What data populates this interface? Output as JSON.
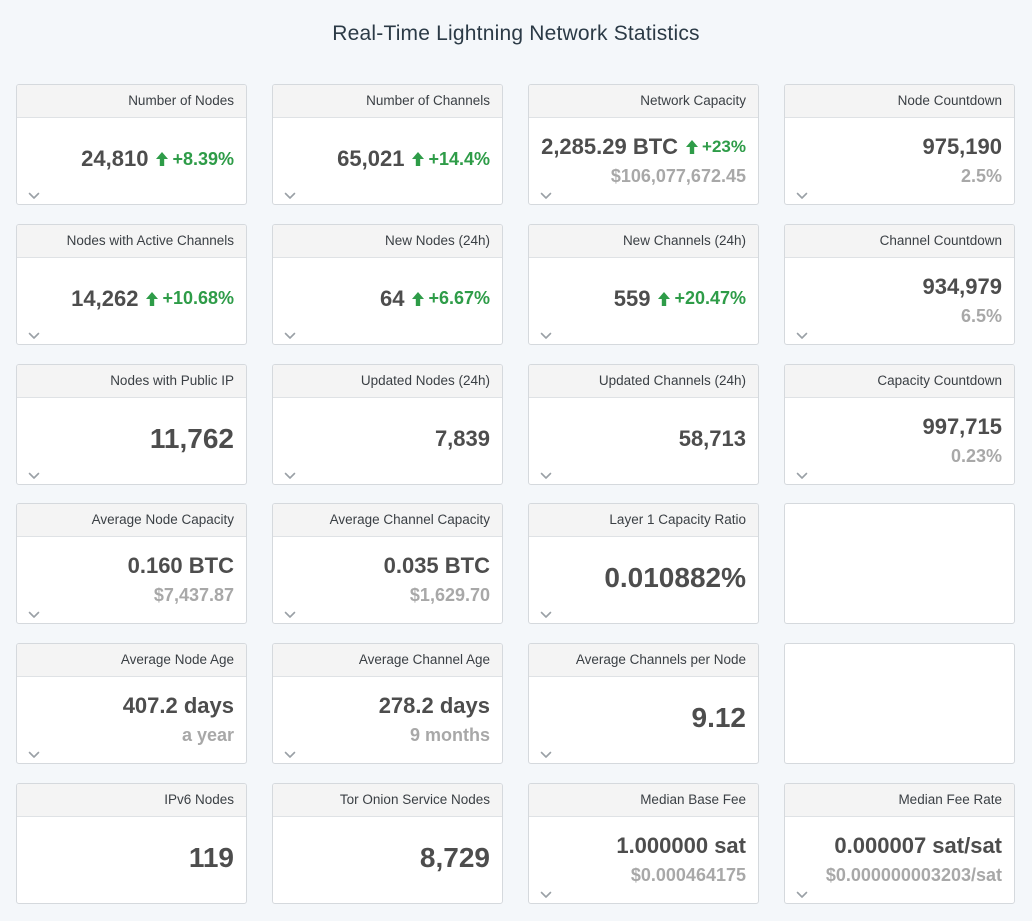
{
  "page": {
    "title": "Real-Time Lightning Network Statistics"
  },
  "colors": {
    "positive": "#2e9c48",
    "muted": "#a8a8a8",
    "value": "#4d4d4d"
  },
  "cards": [
    {
      "id": "number-of-nodes",
      "title": "Number of Nodes",
      "value": "24,810",
      "delta": "+8.39%",
      "sub": "",
      "chevron": true
    },
    {
      "id": "number-of-channels",
      "title": "Number of Channels",
      "value": "65,021",
      "delta": "+14.4%",
      "sub": "",
      "chevron": true
    },
    {
      "id": "network-capacity",
      "title": "Network Capacity",
      "value": "2,285.29 BTC",
      "delta": "+23%",
      "sub": "$106,077,672.45",
      "chevron": true
    },
    {
      "id": "node-countdown",
      "title": "Node Countdown",
      "value": "975,190",
      "delta": "",
      "sub": "2.5%",
      "chevron": true
    },
    {
      "id": "nodes-with-active-channels",
      "title": "Nodes with Active Channels",
      "value": "14,262",
      "delta": "+10.68%",
      "sub": "",
      "chevron": true
    },
    {
      "id": "new-nodes-24h",
      "title": "New Nodes (24h)",
      "value": "64",
      "delta": "+6.67%",
      "sub": "",
      "chevron": true
    },
    {
      "id": "new-channels-24h",
      "title": "New Channels (24h)",
      "value": "559",
      "delta": "+20.47%",
      "sub": "",
      "chevron": true
    },
    {
      "id": "channel-countdown",
      "title": "Channel Countdown",
      "value": "934,979",
      "delta": "",
      "sub": "6.5%",
      "chevron": true
    },
    {
      "id": "nodes-with-public-ip",
      "title": "Nodes with Public IP",
      "value": "11,762",
      "delta": "",
      "sub": "",
      "chevron": true,
      "big": true
    },
    {
      "id": "updated-nodes-24h",
      "title": "Updated Nodes (24h)",
      "value": "7,839",
      "delta": "",
      "sub": "",
      "chevron": true
    },
    {
      "id": "updated-channels-24h",
      "title": "Updated Channels (24h)",
      "value": "58,713",
      "delta": "",
      "sub": "",
      "chevron": true
    },
    {
      "id": "capacity-countdown",
      "title": "Capacity Countdown",
      "value": "997,715",
      "delta": "",
      "sub": "0.23%",
      "chevron": true
    },
    {
      "id": "average-node-capacity",
      "title": "Average Node Capacity",
      "value": "0.160 BTC",
      "delta": "",
      "sub": "$7,437.87",
      "chevron": true
    },
    {
      "id": "average-channel-capacity",
      "title": "Average Channel Capacity",
      "value": "0.035 BTC",
      "delta": "",
      "sub": "$1,629.70",
      "chevron": true
    },
    {
      "id": "layer-1-capacity-ratio",
      "title": "Layer 1 Capacity Ratio",
      "value": "0.010882%",
      "delta": "",
      "sub": "",
      "chevron": true,
      "big": true
    },
    {
      "id": "empty-1",
      "title": "",
      "value": "",
      "delta": "",
      "sub": "",
      "chevron": false,
      "empty": true
    },
    {
      "id": "average-node-age",
      "title": "Average Node Age",
      "value": "407.2 days",
      "delta": "",
      "sub": "a year",
      "chevron": true
    },
    {
      "id": "average-channel-age",
      "title": "Average Channel Age",
      "value": "278.2 days",
      "delta": "",
      "sub": "9 months",
      "chevron": true
    },
    {
      "id": "average-channels-per-node",
      "title": "Average Channels per Node",
      "value": "9.12",
      "delta": "",
      "sub": "",
      "chevron": true,
      "big": true
    },
    {
      "id": "empty-2",
      "title": "",
      "value": "",
      "delta": "",
      "sub": "",
      "chevron": false,
      "empty": true
    },
    {
      "id": "ipv6-nodes",
      "title": "IPv6 Nodes",
      "value": "119",
      "delta": "",
      "sub": "",
      "chevron": false,
      "big": true
    },
    {
      "id": "tor-onion-service-nodes",
      "title": "Tor Onion Service Nodes",
      "value": "8,729",
      "delta": "",
      "sub": "",
      "chevron": false,
      "big": true
    },
    {
      "id": "median-base-fee",
      "title": "Median Base Fee",
      "value": "1.000000 sat",
      "delta": "",
      "sub": "$0.000464175",
      "chevron": true
    },
    {
      "id": "median-fee-rate",
      "title": "Median Fee Rate",
      "value": "0.000007 sat/sat",
      "delta": "",
      "sub": "$0.000000003203/sat",
      "chevron": true
    }
  ]
}
